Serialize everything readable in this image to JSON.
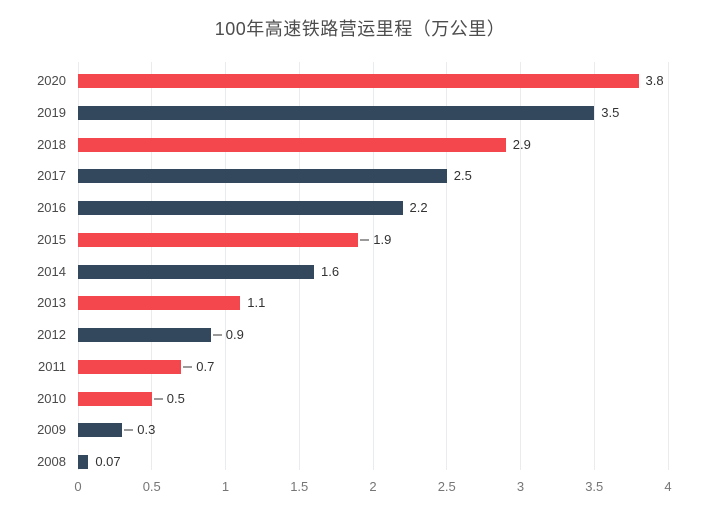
{
  "title": "100年高速铁路营运里程（万公里）",
  "colors": {
    "red": "#f4474d",
    "navy": "#33485c",
    "grid": "#e9ebee",
    "title_text": "#4d4d4d",
    "category_text": "#4a4a4a",
    "value_text": "#333333",
    "tick_text": "#767676",
    "leader": "#9a9a9a",
    "background": "#ffffff"
  },
  "chart_data": {
    "type": "bar",
    "orientation": "horizontal",
    "title": "100年高速铁路营运里程（万公里）",
    "xlabel": "",
    "ylabel": "",
    "categories": [
      "2020",
      "2019",
      "2018",
      "2017",
      "2016",
      "2015",
      "2014",
      "2013",
      "2012",
      "2011",
      "2010",
      "2009",
      "2008"
    ],
    "values": [
      3.8,
      3.5,
      2.9,
      2.5,
      2.2,
      1.9,
      1.6,
      1.1,
      0.9,
      0.7,
      0.5,
      0.3,
      0.07
    ],
    "value_labels": [
      "3.8",
      "3.5",
      "2.9",
      "2.5",
      "2.2",
      "1.9",
      "1.6",
      "1.1",
      "0.9",
      "0.7",
      "0.5",
      "0.3",
      "0.07"
    ],
    "bar_colors": [
      "red",
      "navy",
      "red",
      "navy",
      "navy",
      "red",
      "navy",
      "red",
      "navy",
      "red",
      "red",
      "navy",
      "navy"
    ],
    "leader_dash": [
      false,
      false,
      false,
      false,
      false,
      true,
      false,
      false,
      true,
      true,
      true,
      true,
      false
    ],
    "xlim": [
      0,
      4
    ],
    "x_ticks": [
      0,
      0.5,
      1,
      1.5,
      2,
      2.5,
      3,
      3.5,
      4
    ],
    "x_tick_labels": [
      "0",
      "0.5",
      "1",
      "1.5",
      "2",
      "2.5",
      "3",
      "3.5",
      "4"
    ],
    "grid": true,
    "legend": "none"
  }
}
